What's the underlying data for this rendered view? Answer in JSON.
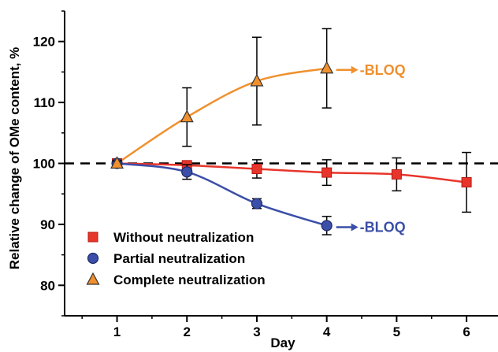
{
  "chart_data": {
    "type": "line",
    "title": "",
    "xlabel": "Day",
    "ylabel": "Relative change of OMe content, %",
    "xlim": [
      0.25,
      6.45
    ],
    "ylim": [
      75,
      125
    ],
    "x_ticks": [
      1,
      2,
      3,
      4,
      5,
      6
    ],
    "y_ticks": [
      80,
      90,
      100,
      110,
      120
    ],
    "x_tick_labels": [
      "1",
      "2",
      "3",
      "4",
      "5",
      "6"
    ],
    "y_tick_labels": [
      "80",
      "90",
      "100",
      "110",
      "120"
    ],
    "reference_line": {
      "y": 100,
      "style": "dashed",
      "color": "#000000"
    },
    "legend_position": "bottom-left",
    "series": [
      {
        "name": "Without neutralization",
        "marker": "square",
        "color": "#e8352b",
        "x": [
          1,
          2,
          3,
          4,
          5,
          6
        ],
        "y": [
          100,
          99.7,
          99.1,
          98.5,
          98.2,
          96.9
        ],
        "err": [
          0.4,
          0.5,
          1.5,
          2.1,
          2.7,
          4.9
        ]
      },
      {
        "name": "Partial neutralization",
        "marker": "circle",
        "color": "#3b4fa8",
        "x": [
          1,
          2,
          3,
          4
        ],
        "y": [
          100,
          98.6,
          93.4,
          89.8
        ],
        "err": [
          0.3,
          1.2,
          0.8,
          1.5
        ],
        "end_annotation": "-BLOQ"
      },
      {
        "name": "Complete neutralization",
        "marker": "triangle",
        "color": "#f0902e",
        "x": [
          1,
          2,
          3,
          4
        ],
        "y": [
          100,
          107.6,
          113.5,
          115.6
        ],
        "err": [
          0.4,
          4.8,
          7.2,
          6.5
        ],
        "end_annotation": "-BLOQ"
      }
    ]
  }
}
